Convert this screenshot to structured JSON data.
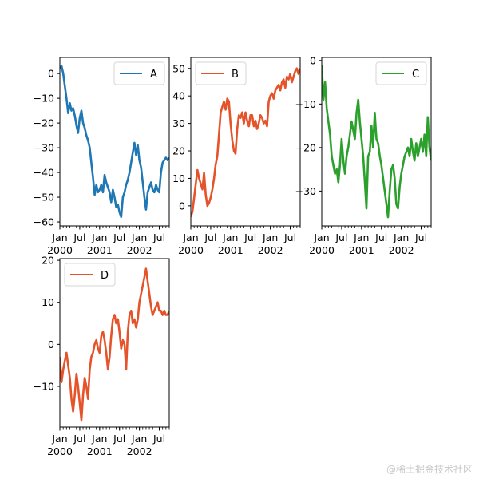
{
  "chart_data": [
    {
      "type": "line",
      "series_name": "A",
      "color": "#1f77b4",
      "ylim": [
        -61.6,
        6.5
      ],
      "yticks": [
        0,
        -10,
        -20,
        -30,
        -40,
        -50,
        -60
      ],
      "ytick_labels": [
        "0",
        "−10",
        "−20",
        "−30",
        "−40",
        "−50",
        "−60"
      ],
      "xlim": [
        "2000-01",
        "2002-09"
      ],
      "x_major_ticks": [
        {
          "month": 0,
          "l1": "Jan",
          "l2": "2000"
        },
        {
          "month": 6,
          "l1": "Jul",
          "l2": ""
        },
        {
          "month": 12,
          "l1": "Jan",
          "l2": "2001"
        },
        {
          "month": 18,
          "l1": "Jul",
          "l2": ""
        },
        {
          "month": 24,
          "l1": "Jan",
          "l2": "2002"
        },
        {
          "month": 30,
          "l1": "Jul",
          "l2": ""
        }
      ],
      "legend": {
        "label": "A",
        "position": "upper right"
      },
      "x_months": [
        0,
        0.5,
        1,
        1.5,
        2,
        2.5,
        3,
        3.5,
        4,
        4.5,
        5,
        5.5,
        6,
        6.5,
        7,
        7.5,
        8,
        8.5,
        9,
        9.5,
        10,
        10.5,
        11,
        11.5,
        12,
        12.5,
        13,
        13.5,
        14,
        14.5,
        15,
        15.5,
        16,
        16.5,
        17,
        17.5,
        18,
        18.5,
        19,
        19.5,
        20,
        20.5,
        21,
        21.5,
        22,
        22.5,
        23,
        23.5,
        24,
        24.5,
        25,
        25.5,
        26,
        26.5,
        27,
        27.5,
        28,
        28.5,
        29,
        29.5,
        30,
        30.5,
        31,
        31.5,
        32,
        32.5,
        33
      ],
      "values": [
        2,
        3,
        0,
        -5,
        -10,
        -16,
        -12,
        -15,
        -14,
        -17,
        -21,
        -24,
        -18,
        -15,
        -20,
        -22,
        -25,
        -27,
        -30,
        -36,
        -42,
        -49,
        -45,
        -48,
        -47,
        -45,
        -48,
        -41,
        -44,
        -46,
        -48,
        -52,
        -47,
        -50,
        -54,
        -53,
        -56,
        -58,
        -50,
        -48,
        -45,
        -43,
        -40,
        -36,
        -32,
        -28,
        -33,
        -29,
        -35,
        -38,
        -44,
        -50,
        -55,
        -48,
        -46,
        -44,
        -47,
        -48,
        -45,
        -47,
        -48,
        -40,
        -36,
        -35,
        -34,
        -35,
        -34
      ]
    },
    {
      "type": "line",
      "series_name": "B",
      "color": "#e5532a",
      "ylim": [
        -7.3,
        54
      ],
      "yticks": [
        50,
        40,
        30,
        20,
        10,
        0
      ],
      "ytick_labels": [
        "50",
        "40",
        "30",
        "20",
        "10",
        "0"
      ],
      "xlim": [
        "2000-01",
        "2002-09"
      ],
      "x_major_ticks": [
        {
          "month": 0,
          "l1": "Jan",
          "l2": "2000"
        },
        {
          "month": 6,
          "l1": "Jul",
          "l2": ""
        },
        {
          "month": 12,
          "l1": "Jan",
          "l2": "2001"
        },
        {
          "month": 18,
          "l1": "Jul",
          "l2": ""
        },
        {
          "month": 24,
          "l1": "Jan",
          "l2": "2002"
        },
        {
          "month": 30,
          "l1": "Jul",
          "l2": ""
        }
      ],
      "legend": {
        "label": "B",
        "position": "upper left"
      },
      "x_months": [
        0,
        0.5,
        1,
        1.5,
        2,
        2.5,
        3,
        3.5,
        4,
        4.5,
        5,
        5.5,
        6,
        6.5,
        7,
        7.5,
        8,
        8.5,
        9,
        9.5,
        10,
        10.5,
        11,
        11.5,
        12,
        12.5,
        13,
        13.5,
        14,
        14.5,
        15,
        15.5,
        16,
        16.5,
        17,
        17.5,
        18,
        18.5,
        19,
        19.5,
        20,
        20.5,
        21,
        21.5,
        22,
        22.5,
        23,
        23.5,
        24,
        24.5,
        25,
        25.5,
        26,
        26.5,
        27,
        27.5,
        28,
        28.5,
        29,
        29.5,
        30,
        30.5,
        31,
        31.5,
        32,
        32.5,
        33
      ],
      "values": [
        -4,
        -2,
        3,
        8,
        13,
        10,
        8,
        6,
        12,
        4,
        0,
        1,
        3,
        6,
        10,
        15,
        18,
        26,
        34,
        36,
        38,
        35,
        39,
        38,
        30,
        24,
        20,
        19,
        28,
        33,
        32,
        34,
        30,
        34,
        31,
        29,
        33,
        33,
        29,
        31,
        28,
        30,
        33,
        32,
        30,
        31,
        29,
        38,
        40,
        41,
        39,
        42,
        43,
        44,
        42,
        45,
        46,
        43,
        47,
        46,
        48,
        45,
        47,
        49,
        50,
        48,
        50
      ]
    },
    {
      "type": "line",
      "series_name": "C",
      "color": "#2ca02c",
      "ylim": [
        -38,
        0.7
      ],
      "yticks": [
        0,
        -10,
        -20,
        -30
      ],
      "ytick_labels": [
        "0",
        "−10",
        "−20",
        "−30"
      ],
      "xlim": [
        "2000-01",
        "2002-09"
      ],
      "x_major_ticks": [
        {
          "month": 0,
          "l1": "Jan",
          "l2": "2000"
        },
        {
          "month": 6,
          "l1": "Jul",
          "l2": ""
        },
        {
          "month": 12,
          "l1": "Jan",
          "l2": "2001"
        },
        {
          "month": 18,
          "l1": "Jul",
          "l2": ""
        },
        {
          "month": 24,
          "l1": "Jan",
          "l2": "2002"
        },
        {
          "month": 30,
          "l1": "Jul",
          "l2": ""
        }
      ],
      "legend": {
        "label": "C",
        "position": "upper right"
      },
      "x_months": [
        0,
        0.5,
        1,
        1.5,
        2,
        2.5,
        3,
        3.5,
        4,
        4.5,
        5,
        5.5,
        6,
        6.5,
        7,
        7.5,
        8,
        8.5,
        9,
        9.5,
        10,
        10.5,
        11,
        11.5,
        12,
        12.5,
        13,
        13.5,
        14,
        14.5,
        15,
        15.5,
        16,
        16.5,
        17,
        17.5,
        18,
        18.5,
        19,
        19.5,
        20,
        20.5,
        21,
        21.5,
        22,
        22.5,
        23,
        23.5,
        24,
        24.5,
        25,
        25.5,
        26,
        26.5,
        27,
        27.5,
        28,
        28.5,
        29,
        29.5,
        30,
        30.5,
        31,
        31.5,
        32,
        32.5,
        33
      ],
      "values": [
        -1,
        -9,
        -5,
        -11,
        -14,
        -17,
        -22,
        -24,
        -26,
        -25,
        -28,
        -24,
        -18,
        -23,
        -26,
        -22,
        -20,
        -17,
        -14,
        -16,
        -18,
        -12,
        -9,
        -14,
        -18,
        -22,
        -28,
        -34,
        -22,
        -21,
        -15,
        -20,
        -12,
        -18,
        -19,
        -22,
        -24,
        -27,
        -30,
        -33,
        -36,
        -30,
        -25,
        -24,
        -27,
        -33,
        -34,
        -29,
        -26,
        -24,
        -22,
        -21,
        -20,
        -22,
        -18,
        -21,
        -23,
        -19,
        -22,
        -20,
        -18,
        -21,
        -17,
        -22,
        -13,
        -20,
        -23
      ]
    },
    {
      "type": "line",
      "series_name": "D",
      "color": "#e5532a",
      "ylim": [
        -19.7,
        20.4
      ],
      "yticks": [
        20,
        10,
        0,
        -10
      ],
      "ytick_labels": [
        "20",
        "10",
        "0",
        "−10"
      ],
      "xlim": [
        "2000-01",
        "2002-09"
      ],
      "x_major_ticks": [
        {
          "month": 0,
          "l1": "Jan",
          "l2": "2000"
        },
        {
          "month": 6,
          "l1": "Jul",
          "l2": ""
        },
        {
          "month": 12,
          "l1": "Jan",
          "l2": "2001"
        },
        {
          "month": 18,
          "l1": "Jul",
          "l2": ""
        },
        {
          "month": 24,
          "l1": "Jan",
          "l2": "2002"
        },
        {
          "month": 30,
          "l1": "Jul",
          "l2": ""
        }
      ],
      "legend": {
        "label": "D",
        "position": "upper left"
      },
      "x_months": [
        0,
        0.5,
        1,
        1.5,
        2,
        2.5,
        3,
        3.5,
        4,
        4.5,
        5,
        5.5,
        6,
        6.5,
        7,
        7.5,
        8,
        8.5,
        9,
        9.5,
        10,
        10.5,
        11,
        11.5,
        12,
        12.5,
        13,
        13.5,
        14,
        14.5,
        15,
        15.5,
        16,
        16.5,
        17,
        17.5,
        18,
        18.5,
        19,
        19.5,
        20,
        20.5,
        21,
        21.5,
        22,
        22.5,
        23,
        23.5,
        24,
        24.5,
        25,
        25.5,
        26,
        26.5,
        27,
        27.5,
        28,
        28.5,
        29,
        29.5,
        30,
        30.5,
        31,
        31.5,
        32,
        32.5,
        33
      ],
      "values": [
        -3,
        -9,
        -6,
        -4,
        -2,
        -5,
        -8,
        -13,
        -16,
        -12,
        -7,
        -10,
        -14,
        -18,
        -12,
        -8,
        -10,
        -13,
        -6,
        -3,
        -2,
        0,
        1,
        -1,
        -2,
        2,
        3,
        1,
        -2,
        -6,
        -3,
        2,
        6,
        7,
        5,
        6,
        3,
        -1,
        1,
        0,
        -6,
        3,
        7,
        8,
        5,
        6,
        4,
        6,
        10,
        12,
        14,
        16,
        18,
        15,
        12,
        9,
        7,
        8,
        9,
        10,
        8,
        8,
        7,
        8,
        7,
        7,
        8
      ]
    }
  ],
  "watermark": "@稀土掘金技术社区"
}
